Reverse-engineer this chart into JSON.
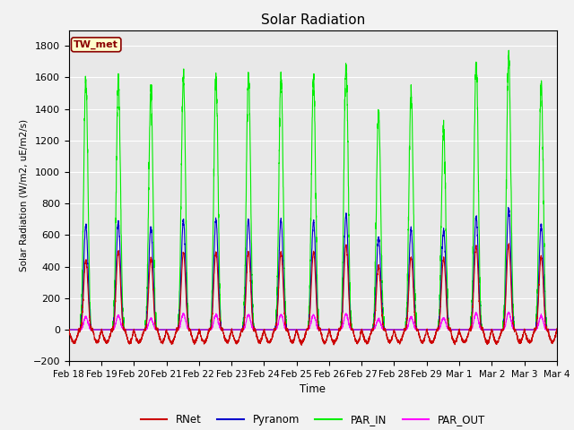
{
  "title": "Solar Radiation",
  "ylabel": "Solar Radiation (W/m2, uE/m2/s)",
  "xlabel": "Time",
  "ylim": [
    -200,
    1900
  ],
  "yticks": [
    -200,
    0,
    200,
    400,
    600,
    800,
    1000,
    1200,
    1400,
    1600,
    1800
  ],
  "station_label": "TW_met",
  "colors": {
    "RNet": "#cc0000",
    "Pyranom": "#0000cc",
    "PAR_IN": "#00ee00",
    "PAR_OUT": "#ff00ff"
  },
  "bg_color": "#e8e8e8",
  "line_width": 0.8,
  "days": [
    "Feb 18",
    "Feb 19",
    "Feb 20",
    "Feb 21",
    "Feb 22",
    "Feb 23",
    "Feb 24",
    "Feb 25",
    "Feb 26",
    "Feb 27",
    "Feb 28",
    "Feb 29",
    "Mar 1",
    "Mar 2",
    "Mar 3",
    "Mar 4"
  ],
  "day_peaks": {
    "PAR_IN": [
      1580,
      1570,
      1500,
      1600,
      1600,
      1600,
      1600,
      1590,
      1680,
      1380,
      1500,
      1280,
      1700,
      1720,
      1560,
      0
    ],
    "Pyranom": [
      660,
      680,
      650,
      690,
      700,
      700,
      700,
      680,
      730,
      590,
      640,
      630,
      720,
      770,
      660,
      0
    ],
    "RNet": [
      440,
      500,
      450,
      490,
      490,
      490,
      490,
      490,
      540,
      400,
      460,
      450,
      530,
      540,
      460,
      0
    ],
    "PAR_OUT": [
      80,
      90,
      70,
      100,
      95,
      95,
      95,
      95,
      100,
      65,
      80,
      75,
      105,
      110,
      85,
      0
    ]
  },
  "night_RNet_amp": 80,
  "n_days": 15,
  "n_pts_per_day": 288,
  "rise_hour": 7.5,
  "set_hour": 17.5,
  "peak_sharpness": 4.0
}
